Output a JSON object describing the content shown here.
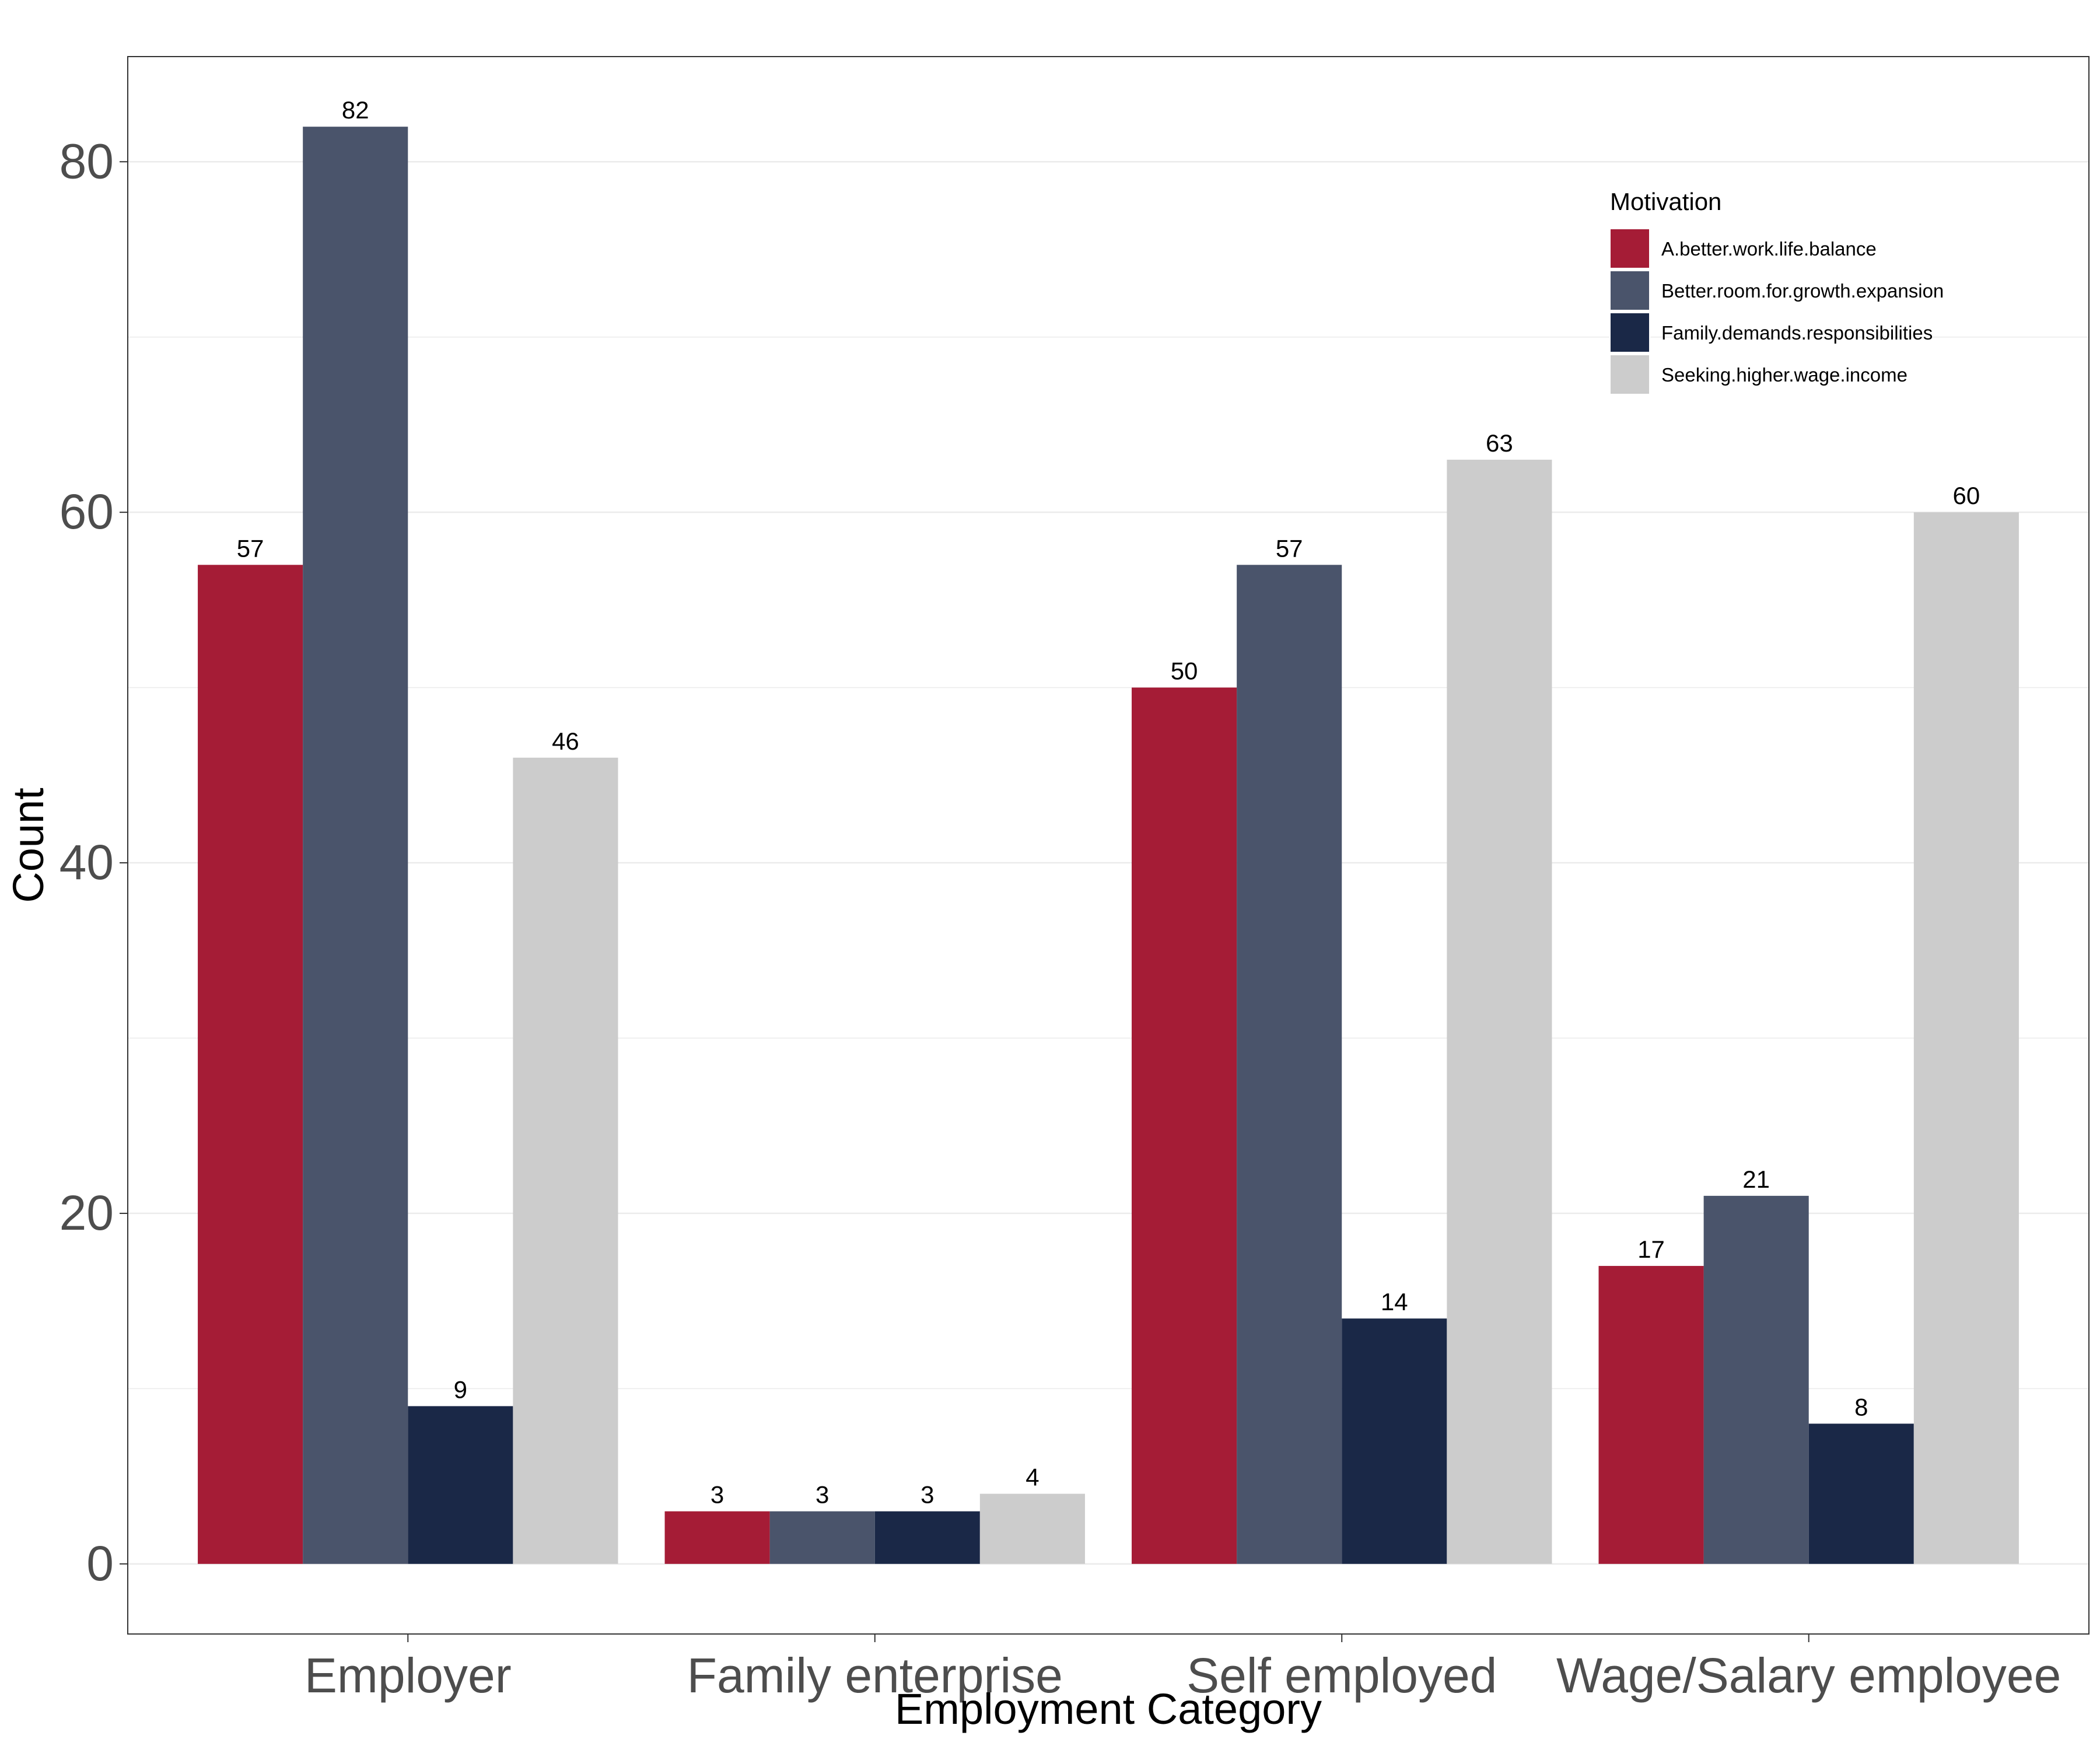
{
  "chart_data": {
    "type": "bar",
    "xlabel": "Employment Category",
    "ylabel": "Count",
    "categories": [
      "Employer",
      "Family enterprise",
      "Self employed",
      "Wage/Salary employee"
    ],
    "series": [
      {
        "name": "A.better.work.life.balance",
        "color": "#A51C36",
        "values": [
          57,
          3,
          50,
          17
        ]
      },
      {
        "name": "Better.room.for.growth.expansion",
        "color": "#4A546B",
        "values": [
          82,
          3,
          57,
          21
        ]
      },
      {
        "name": "Family.demands.responsibilities",
        "color": "#1A2847",
        "values": [
          9,
          3,
          14,
          8
        ]
      },
      {
        "name": "Seeking.higher.wage.income",
        "color": "#CCCCCC",
        "values": [
          46,
          4,
          63,
          60
        ]
      }
    ],
    "ylim": [
      -4,
      86
    ],
    "yticks": [
      0,
      20,
      40,
      60,
      80
    ],
    "grid": true,
    "legend": {
      "title": "Motivation",
      "position": "top-right"
    }
  }
}
